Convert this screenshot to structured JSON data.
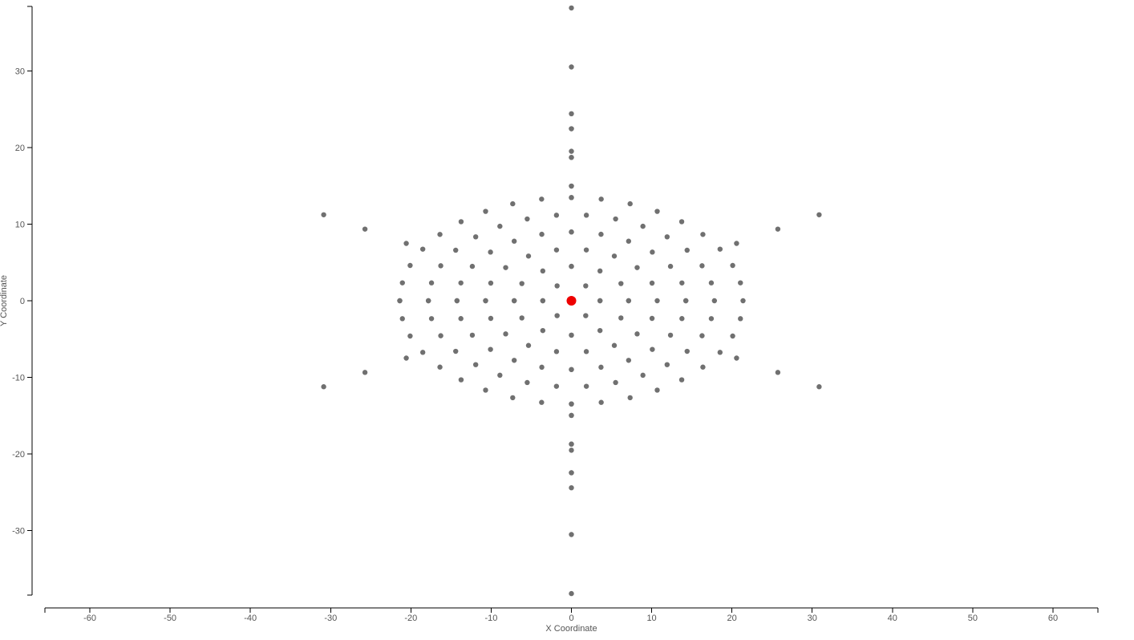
{
  "chart_data": {
    "type": "scatter",
    "title": "",
    "xlabel": "X Coordinate",
    "ylabel": "Y Coordinate",
    "xlim": [
      -65.6,
      65.6
    ],
    "ylim": [
      -38.4,
      38.4
    ],
    "xticks": [
      -60,
      -50,
      -40,
      -30,
      -20,
      -10,
      0,
      10,
      20,
      30,
      40,
      50,
      60
    ],
    "yticks": [
      -30,
      -20,
      -10,
      0,
      10,
      20,
      30
    ],
    "grid": false,
    "legend": "none",
    "point_color": "#707070",
    "highlight_color": "#ee0000",
    "highlight_point": [
      0,
      0
    ],
    "pattern": {
      "kind": "six-fold symmetric lattice around the highlighted origin point",
      "lattice_step": 2.75,
      "lattice_rows": 6,
      "outer_rays": [
        {
          "direction": "up",
          "values": [
            19.5,
            24.4,
            30.5,
            38.2
          ]
        },
        {
          "direction": "down",
          "values": [
            -19.5,
            -24.4,
            -30.5,
            -38.2
          ]
        }
      ]
    },
    "series": [
      {
        "points": "generated from pattern (six-fold symmetric lattice of gray points)"
      }
    ]
  }
}
